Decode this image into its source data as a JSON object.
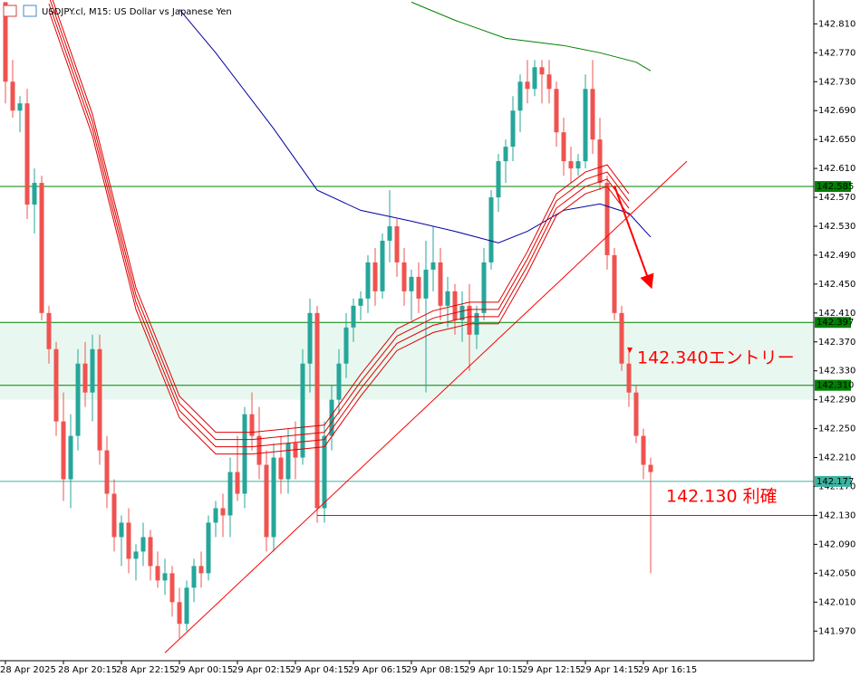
{
  "chart_data": {
    "type": "candlestick",
    "title": "USDJPY.cl, M15:  US Dollar vs Japanese Yen",
    "up_color": "#26a69a",
    "down_color": "#ef5350",
    "categories": [
      "28 Apr 2025",
      null,
      null,
      null,
      null,
      null,
      null,
      null,
      "28 Apr 20:15",
      null,
      null,
      null,
      null,
      null,
      null,
      null,
      "28 Apr 22:15",
      null,
      null,
      null,
      null,
      null,
      null,
      null,
      "29 Apr 00:15",
      null,
      null,
      null,
      null,
      null,
      null,
      null,
      "29 Apr 02:15",
      null,
      null,
      null,
      null,
      null,
      null,
      null,
      "29 Apr 04:15",
      null,
      null,
      null,
      null,
      null,
      null,
      null,
      "29 Apr 06:15",
      null,
      null,
      null,
      null,
      null,
      null,
      null,
      "29 Apr 08:15",
      null,
      null,
      null,
      null,
      null,
      null,
      null,
      "29 Apr 10:15",
      null,
      null,
      null,
      null,
      null,
      null,
      null,
      "29 Apr 12:15",
      null,
      null,
      null,
      null,
      null,
      null,
      null,
      "29 Apr 14:15",
      null,
      null,
      null,
      null,
      null,
      null,
      null,
      "29 Apr 16:15",
      null
    ],
    "open": [
      142.84,
      142.73,
      142.69,
      142.7,
      142.56,
      142.59,
      142.41,
      142.36,
      142.26,
      142.18,
      142.24,
      142.34,
      142.3,
      142.36,
      142.22,
      142.16,
      142.1,
      142.12,
      142.07,
      142.08,
      142.1,
      142.06,
      142.04,
      142.05,
      142.01,
      141.98,
      142.03,
      142.06,
      142.05,
      142.12,
      142.14,
      142.13,
      142.19,
      142.16,
      142.27,
      142.24,
      142.2,
      142.1,
      142.21,
      142.18,
      142.23,
      142.21,
      142.34,
      142.41,
      142.14,
      142.24,
      142.29,
      142.34,
      142.39,
      142.42,
      142.43,
      142.48,
      142.44,
      142.51,
      142.53,
      142.48,
      142.44,
      142.46,
      142.43,
      142.47,
      142.48,
      142.42,
      142.44,
      142.4,
      142.42,
      142.38,
      142.41,
      142.48,
      142.57,
      142.62,
      142.64,
      142.69,
      142.73,
      142.72,
      142.75,
      142.74,
      142.72,
      142.66,
      142.62,
      142.61,
      142.62,
      142.72,
      142.65,
      142.59,
      142.49,
      142.41,
      142.34,
      142.3,
      142.24,
      142.2
    ],
    "high": [
      142.84,
      142.76,
      142.71,
      142.72,
      142.61,
      142.6,
      142.42,
      142.37,
      142.3,
      142.27,
      142.36,
      142.37,
      142.38,
      142.38,
      142.24,
      142.18,
      142.13,
      142.14,
      142.09,
      142.12,
      142.11,
      142.08,
      142.07,
      142.06,
      142.03,
      142.04,
      142.07,
      142.08,
      142.13,
      142.15,
      142.16,
      142.21,
      142.24,
      142.28,
      142.3,
      142.28,
      142.22,
      142.23,
      142.24,
      142.25,
      142.26,
      142.36,
      142.43,
      142.42,
      142.26,
      142.31,
      142.36,
      142.41,
      142.43,
      142.44,
      142.49,
      142.5,
      142.52,
      142.58,
      142.54,
      142.5,
      142.47,
      142.48,
      142.51,
      142.53,
      142.5,
      142.46,
      142.45,
      142.44,
      142.45,
      142.42,
      142.5,
      142.58,
      142.63,
      142.65,
      142.71,
      142.74,
      142.76,
      142.76,
      142.76,
      142.76,
      142.73,
      142.68,
      142.64,
      142.63,
      142.74,
      142.76,
      142.68,
      142.6,
      142.5,
      142.42,
      142.36,
      142.31,
      142.25,
      142.21
    ],
    "low": [
      142.7,
      142.68,
      142.66,
      142.54,
      142.52,
      142.4,
      142.34,
      142.24,
      142.15,
      142.14,
      142.22,
      142.28,
      142.26,
      142.2,
      142.14,
      142.08,
      142.06,
      142.05,
      142.04,
      142.06,
      142.04,
      142.03,
      142.02,
      141.99,
      141.96,
      141.97,
      142.01,
      142.03,
      142.04,
      142.1,
      142.1,
      142.1,
      142.15,
      142.14,
      142.22,
      142.18,
      142.08,
      142.08,
      142.16,
      142.16,
      142.18,
      142.2,
      142.3,
      142.12,
      142.12,
      142.22,
      142.27,
      142.32,
      142.37,
      142.4,
      142.41,
      142.42,
      142.43,
      142.48,
      142.46,
      142.42,
      142.4,
      142.41,
      142.3,
      142.44,
      142.4,
      142.39,
      142.38,
      142.37,
      142.33,
      142.36,
      142.4,
      142.47,
      142.55,
      142.59,
      142.62,
      142.66,
      142.7,
      142.71,
      142.7,
      142.7,
      142.64,
      142.6,
      142.59,
      142.6,
      142.61,
      142.63,
      142.58,
      142.47,
      142.4,
      142.33,
      142.28,
      142.23,
      142.18,
      142.05
    ],
    "close": [
      142.73,
      142.69,
      142.7,
      142.56,
      142.59,
      142.41,
      142.36,
      142.26,
      142.18,
      142.24,
      142.34,
      142.3,
      142.36,
      142.22,
      142.16,
      142.1,
      142.12,
      142.07,
      142.08,
      142.1,
      142.06,
      142.04,
      142.05,
      142.01,
      141.98,
      142.03,
      142.06,
      142.05,
      142.12,
      142.14,
      142.13,
      142.19,
      142.16,
      142.27,
      142.24,
      142.2,
      142.1,
      142.21,
      142.18,
      142.23,
      142.21,
      142.34,
      142.41,
      142.14,
      142.24,
      142.29,
      142.34,
      142.39,
      142.42,
      142.43,
      142.48,
      142.44,
      142.51,
      142.53,
      142.48,
      142.44,
      142.46,
      142.43,
      142.47,
      142.48,
      142.42,
      142.44,
      142.4,
      142.42,
      142.38,
      142.41,
      142.48,
      142.57,
      142.62,
      142.64,
      142.69,
      142.73,
      142.72,
      142.75,
      142.74,
      142.72,
      142.66,
      142.62,
      142.61,
      142.62,
      142.72,
      142.65,
      142.59,
      142.49,
      142.41,
      142.34,
      142.3,
      142.24,
      142.2,
      142.19
    ],
    "lines": [
      {
        "color": "#0000a0",
        "x": [
          24,
          29,
          37,
          43,
          49,
          56,
          62,
          68,
          72,
          77,
          82,
          86,
          89
        ],
        "values": [
          142.83,
          142.77,
          142.665,
          142.58,
          142.552,
          142.537,
          142.523,
          142.507,
          142.523,
          142.552,
          142.561,
          142.548,
          142.515
        ]
      },
      {
        "color": "#008000",
        "x": [
          56,
          62,
          69,
          77,
          82,
          87,
          89
        ],
        "values": [
          142.84,
          142.815,
          142.79,
          142.78,
          142.77,
          142.757,
          142.745
        ]
      },
      {
        "color": "#e00000",
        "x": [
          6,
          12,
          18,
          24,
          29,
          34,
          39,
          44,
          49,
          54,
          59,
          64,
          68,
          72,
          76,
          80,
          83,
          86
        ],
        "values": [
          142.858,
          142.685,
          142.445,
          142.295,
          142.245,
          142.245,
          142.25,
          142.255,
          142.325,
          142.388,
          142.413,
          142.425,
          142.425,
          142.495,
          142.575,
          142.605,
          142.615,
          142.575
        ]
      },
      {
        "color": "#e00000",
        "x": [
          6,
          12,
          18,
          24,
          29,
          34,
          39,
          44,
          49,
          54,
          59,
          64,
          68,
          72,
          76,
          80,
          83,
          86
        ],
        "values": [
          142.848,
          142.675,
          142.435,
          142.285,
          142.235,
          142.235,
          142.24,
          142.245,
          142.315,
          142.378,
          142.403,
          142.415,
          142.415,
          142.485,
          142.565,
          142.595,
          142.605,
          142.565
        ]
      },
      {
        "color": "#e00000",
        "x": [
          6,
          12,
          18,
          24,
          29,
          34,
          39,
          44,
          49,
          54,
          59,
          64,
          68,
          72,
          76,
          80,
          83,
          86
        ],
        "values": [
          142.838,
          142.665,
          142.425,
          142.275,
          142.225,
          142.225,
          142.23,
          142.235,
          142.305,
          142.368,
          142.393,
          142.405,
          142.405,
          142.475,
          142.555,
          142.585,
          142.595,
          142.555
        ]
      },
      {
        "color": "#e00000",
        "x": [
          6,
          12,
          18,
          24,
          29,
          34,
          39,
          44,
          49,
          54,
          59,
          64,
          68,
          72,
          76,
          80,
          83,
          86
        ],
        "values": [
          142.828,
          142.655,
          142.415,
          142.265,
          142.215,
          142.215,
          142.22,
          142.225,
          142.295,
          142.358,
          142.383,
          142.395,
          142.395,
          142.465,
          142.545,
          142.575,
          142.585,
          142.545
        ]
      },
      {
        "color": "#ff0000",
        "x": [
          22,
          94
        ],
        "values": [
          141.94,
          142.62
        ]
      },
      {
        "color": "#ff0000",
        "x": [
          43,
          112
        ],
        "values": [
          142.13,
          142.13
        ]
      },
      {
        "color": "#ff0000",
        "x": [
          84,
          89
        ],
        "values": [
          142.586,
          142.448
        ],
        "arrow": true
      }
    ],
    "zone": [
      142.397,
      142.29
    ],
    "levels": [
      {
        "value": 142.585,
        "label": "142.585",
        "color": "#008000"
      },
      {
        "value": 142.397,
        "label": "142.397",
        "color": "#008000"
      },
      {
        "value": 142.31,
        "label": "142.310",
        "color": "#008000"
      },
      {
        "value": 142.177,
        "label": "142.177",
        "color": "#3cb3a0"
      }
    ],
    "annotations": [
      "142.340エントリー",
      "142.130 利確"
    ],
    "ylim": [
      141.929,
      142.843
    ],
    "yticks": [
      {
        "value": 141.97,
        "label": "141.970"
      },
      {
        "value": 142.01,
        "label": "142.010"
      },
      {
        "value": 142.05,
        "label": "142.050"
      },
      {
        "value": 142.09,
        "label": "142.090"
      },
      {
        "value": 142.13,
        "label": "142.130"
      },
      {
        "value": 142.17,
        "label": "142.170"
      },
      {
        "value": 142.21,
        "label": "142.210"
      },
      {
        "value": 142.25,
        "label": "142.250"
      },
      {
        "value": 142.29,
        "label": "142.290"
      },
      {
        "value": 142.33,
        "label": "142.330"
      },
      {
        "value": 142.37,
        "label": "142.370"
      },
      {
        "value": 142.41,
        "label": "142.410"
      },
      {
        "value": 142.45,
        "label": "142.450"
      },
      {
        "value": 142.49,
        "label": "142.490"
      },
      {
        "value": 142.53,
        "label": "142.530"
      },
      {
        "value": 142.57,
        "label": "142.570"
      },
      {
        "value": 142.61,
        "label": "142.610"
      },
      {
        "value": 142.65,
        "label": "142.650"
      },
      {
        "value": 142.69,
        "label": "142.690"
      },
      {
        "value": 142.73,
        "label": "142.730"
      },
      {
        "value": 142.77,
        "label": "142.770"
      },
      {
        "value": 142.81,
        "label": "142.810"
      }
    ]
  }
}
